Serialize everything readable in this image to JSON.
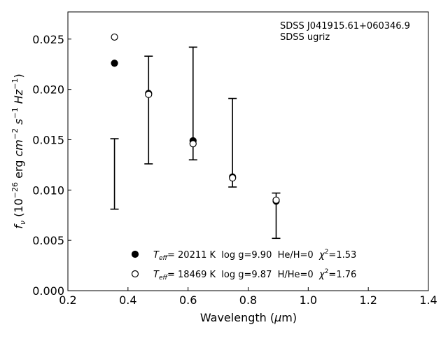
{
  "chart_data": {
    "type": "scatter",
    "title": "",
    "annotation": [
      "SDSS J041915.61+060346.9",
      "SDSS ugriz"
    ],
    "xlabel": "Wavelength (μm)",
    "ylabel": "f_ν (10^-26 erg cm^-2 s^-1 Hz^-1)",
    "xlim": [
      0.2,
      1.4
    ],
    "ylim": [
      0.0,
      0.0277
    ],
    "xticks": [
      0.2,
      0.4,
      0.6,
      0.8,
      1.0,
      1.2,
      1.4
    ],
    "xtick_labels": [
      "0.2",
      "0.4",
      "0.6",
      "0.8",
      "1.0",
      "1.2",
      "1.4"
    ],
    "yticks": [
      0.0,
      0.005,
      0.01,
      0.015,
      0.02,
      0.025
    ],
    "ytick_labels": [
      "0.000",
      "0.005",
      "0.010",
      "0.015",
      "0.020",
      "0.025"
    ],
    "grid": false,
    "legend_position": "bottom-center",
    "observed": {
      "x": [
        0.3551,
        0.4686,
        0.6166,
        0.748,
        0.8932
      ],
      "ylow": [
        0.0081,
        0.0126,
        0.013,
        0.0103,
        0.0052
      ],
      "yhigh": [
        0.0151,
        0.0233,
        0.0242,
        0.0191,
        0.0097
      ]
    },
    "series": [
      {
        "name": "T_eff= 20211 K  log g=9.90  He/H=0  χ²=1.53",
        "marker": "filled-circle",
        "x": [
          0.3551,
          0.4686,
          0.6166,
          0.748,
          0.8932
        ],
        "y": [
          0.0226,
          0.0196,
          0.0149,
          0.0113,
          0.0089
        ]
      },
      {
        "name": "T_eff= 18469 K  log g=9.87  H/He=0  χ²=1.76",
        "marker": "open-circle",
        "x": [
          0.3551,
          0.4686,
          0.6166,
          0.748,
          0.8932
        ],
        "y": [
          0.0252,
          0.0195,
          0.0146,
          0.0112,
          0.009
        ]
      }
    ],
    "legend": [
      {
        "teff": "= 20211 K",
        "rest": "  log g=9.90  He/H=0  ",
        "chi": "=1.53"
      },
      {
        "teff": "= 18469 K",
        "rest": "  log g=9.87  H/He=0  ",
        "chi": "=1.76"
      }
    ]
  }
}
